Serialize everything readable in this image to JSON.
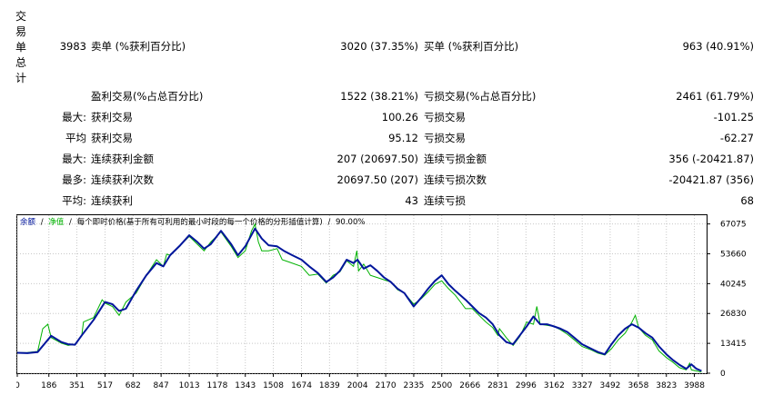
{
  "section_label": [
    "交",
    "易",
    "单",
    "总",
    "计"
  ],
  "stats": {
    "total_trades": "3983",
    "short_label": "卖单 (%获利百分比)",
    "short_value": "3020 (37.35%)",
    "long_label": "买单 (%获利百分比)",
    "long_value": "963 (40.91%)",
    "profit_trades_label": "盈利交易(%占总百分比)",
    "profit_trades_value": "1522 (38.21%)",
    "loss_trades_label": "亏损交易(%占总百分比)",
    "loss_trades_value": "2461 (61.79%)",
    "largest_prefix": "最大:",
    "largest_profit_label": "获利交易",
    "largest_profit_value": "100.26",
    "largest_loss_label": "亏损交易",
    "largest_loss_value": "-101.25",
    "average_prefix": "平均",
    "average_profit_label": "获利交易",
    "average_profit_value": "95.12",
    "average_loss_label": "亏损交易",
    "average_loss_value": "-62.27",
    "max_consec_prefix": "最大:",
    "max_consec_wins_label": "连续获利金额",
    "max_consec_wins_value": "207 (20697.50)",
    "max_consec_losses_label": "连续亏损金额",
    "max_consec_losses_value": "356 (-20421.87)",
    "max_consec_amount_prefix": "最多:",
    "max_consec_profit_label": "连续获利次数",
    "max_consec_profit_value": "20697.50 (207)",
    "max_consec_loss_label": "连续亏损次数",
    "max_consec_loss_value": "-20421.87 (356)",
    "avg_consec_prefix": "平均:",
    "avg_consec_wins_label": "连续获利",
    "avg_consec_wins_value": "43",
    "avg_consec_losses_label": "连续亏损",
    "avg_consec_losses_value": "68"
  },
  "legend": {
    "balance": "余额",
    "sep1": "/",
    "equity": "净值",
    "sep2": "/",
    "model": "每个即时价格(基于所有可利用的最小时段的每一个价格的分形插值计算)",
    "sep3": "/",
    "quality": "90.00%"
  },
  "colors": {
    "balance": "#00159b",
    "equity": "#00b200",
    "grid": "#c8c8c8",
    "text": "#000000"
  },
  "chart_data": {
    "type": "line",
    "x_ticks": [
      0,
      186,
      351,
      517,
      682,
      847,
      1013,
      1178,
      1343,
      1508,
      1674,
      1839,
      2004,
      2170,
      2335,
      2500,
      2666,
      2831,
      2996,
      3162,
      3327,
      3492,
      3658,
      3823,
      3988
    ],
    "y_ticks": [
      0,
      13415,
      26830,
      40245,
      53660,
      67075
    ],
    "xlim": [
      0,
      4060
    ],
    "ylim": [
      0,
      71000
    ],
    "series": [
      {
        "name": "余额",
        "x": [
          0,
          60,
          120,
          200,
          260,
          300,
          340,
          380,
          450,
          517,
          560,
          600,
          640,
          700,
          760,
          820,
          860,
          900,
          960,
          1013,
          1060,
          1100,
          1140,
          1200,
          1260,
          1300,
          1343,
          1400,
          1440,
          1480,
          1530,
          1570,
          1620,
          1674,
          1720,
          1770,
          1820,
          1860,
          1900,
          1940,
          1980,
          2004,
          2040,
          2080,
          2120,
          2160,
          2200,
          2240,
          2280,
          2335,
          2380,
          2420,
          2460,
          2500,
          2540,
          2580,
          2640,
          2680,
          2720,
          2760,
          2800,
          2840,
          2880,
          2920,
          2960,
          3000,
          3040,
          3080,
          3120,
          3162,
          3200,
          3240,
          3280,
          3327,
          3380,
          3420,
          3460,
          3500,
          3540,
          3580,
          3620,
          3660,
          3700,
          3740,
          3780,
          3823,
          3860,
          3900,
          3940,
          3970,
          4000,
          4030
        ],
        "y": [
          9200,
          9000,
          9500,
          16800,
          14000,
          13000,
          12800,
          17000,
          24000,
          32000,
          31000,
          28000,
          29000,
          37000,
          44000,
          49500,
          48000,
          53000,
          57500,
          62000,
          59000,
          56000,
          58000,
          64000,
          58000,
          53000,
          57000,
          65000,
          60500,
          57500,
          57000,
          55000,
          53000,
          51000,
          48000,
          45000,
          41000,
          43000,
          46000,
          51000,
          49500,
          51000,
          47000,
          48500,
          46000,
          43000,
          41000,
          38000,
          36000,
          30000,
          34000,
          38000,
          41500,
          44000,
          40000,
          37000,
          33000,
          30000,
          27000,
          25000,
          22000,
          17000,
          14000,
          13000,
          17000,
          21000,
          25500,
          22000,
          22000,
          21000,
          20000,
          18500,
          16000,
          13000,
          11000,
          9500,
          8500,
          13000,
          17000,
          20000,
          22000,
          20500,
          18000,
          16000,
          12000,
          8500,
          6000,
          3800,
          2000,
          4000,
          2000,
          1000
        ]
      },
      {
        "name": "净值",
        "x": [
          0,
          60,
          120,
          150,
          180,
          200,
          260,
          300,
          340,
          380,
          390,
          450,
          500,
          517,
          560,
          600,
          640,
          700,
          760,
          820,
          860,
          880,
          900,
          960,
          1013,
          1060,
          1100,
          1140,
          1200,
          1260,
          1300,
          1343,
          1380,
          1400,
          1420,
          1440,
          1480,
          1530,
          1560,
          1600,
          1674,
          1720,
          1770,
          1820,
          1860,
          1900,
          1940,
          1980,
          2000,
          2010,
          2040,
          2080,
          2120,
          2160,
          2200,
          2240,
          2280,
          2335,
          2380,
          2420,
          2460,
          2500,
          2540,
          2580,
          2620,
          2640,
          2680,
          2720,
          2760,
          2800,
          2830,
          2840,
          2880,
          2920,
          2960,
          3000,
          3040,
          3060,
          3080,
          3120,
          3162,
          3200,
          3240,
          3280,
          3327,
          3380,
          3420,
          3460,
          3500,
          3540,
          3580,
          3620,
          3640,
          3660,
          3700,
          3740,
          3780,
          3823,
          3860,
          3900,
          3940,
          3960,
          3970,
          4000,
          4030
        ],
        "y": [
          9200,
          9300,
          9800,
          20000,
          22000,
          16000,
          13500,
          12500,
          13000,
          17000,
          23000,
          25000,
          33000,
          31500,
          30000,
          26000,
          32000,
          36000,
          44000,
          51000,
          48000,
          53500,
          53000,
          57500,
          61500,
          58000,
          55000,
          59000,
          63500,
          57000,
          52000,
          55000,
          64000,
          67000,
          59000,
          55000,
          55000,
          56000,
          51000,
          50000,
          48000,
          44000,
          44500,
          40500,
          44000,
          45500,
          50500,
          48000,
          55000,
          46000,
          49000,
          44000,
          43000,
          42000,
          41000,
          37500,
          36000,
          31000,
          33500,
          36500,
          40000,
          41500,
          38000,
          35000,
          31000,
          29000,
          29000,
          26000,
          23000,
          20500,
          17000,
          20000,
          16000,
          12500,
          16500,
          23000,
          22000,
          30000,
          22000,
          21500,
          21000,
          19500,
          17500,
          15000,
          12000,
          10500,
          9000,
          8200,
          11000,
          15000,
          18000,
          23000,
          26000,
          20500,
          17000,
          15000,
          10000,
          7000,
          5000,
          2500,
          1500,
          4500,
          1500,
          1000,
          500
        ]
      }
    ]
  }
}
